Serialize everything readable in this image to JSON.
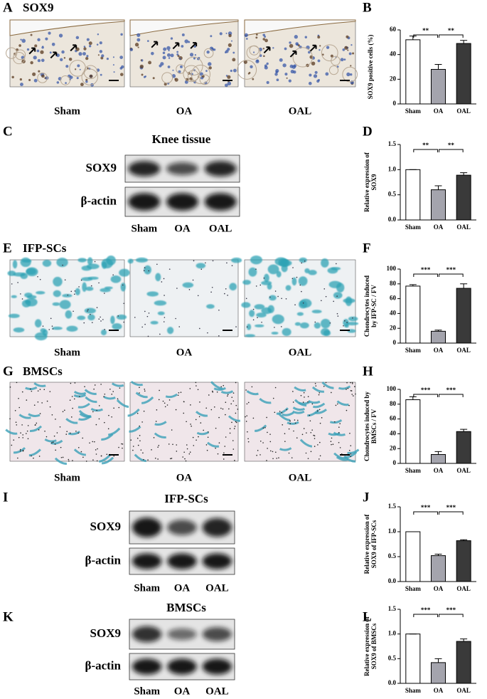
{
  "figure": {
    "A": {
      "label": "A",
      "title": "SOX9",
      "groups": [
        "Sham",
        "OA",
        "OAL"
      ]
    },
    "C": {
      "label": "C",
      "title": "Knee tissue",
      "rows": [
        "SOX9",
        "β-actin"
      ],
      "groups": [
        "Sham",
        "OA",
        "OAL"
      ]
    },
    "E": {
      "label": "E",
      "title": "IFP-SCs",
      "groups": [
        "Sham",
        "OA",
        "OAL"
      ]
    },
    "G": {
      "label": "G",
      "title": "BMSCs",
      "groups": [
        "Sham",
        "OA",
        "OAL"
      ]
    },
    "I": {
      "label": "I",
      "title": "IFP-SCs",
      "rows": [
        "SOX9",
        "β-actin"
      ],
      "groups": [
        "Sham",
        "OA",
        "OAL"
      ]
    },
    "K": {
      "label": "K",
      "title": "BMSCs",
      "rows": [
        "SOX9",
        "β-actin"
      ],
      "groups": [
        "Sham",
        "OA",
        "OAL"
      ]
    }
  },
  "chart_data": [
    {
      "type": "bar",
      "panel_label": "B",
      "ylabel": [
        "SOX9 positive cells (%)"
      ],
      "categories": [
        "Sham",
        "OA",
        "OAL"
      ],
      "values": [
        52,
        28,
        49
      ],
      "errors": [
        3,
        4,
        2.5
      ],
      "colors": [
        "#ffffff",
        "#a4a4ad",
        "#3a3a3a"
      ],
      "ylim": [
        0,
        60
      ],
      "yticks": [
        0,
        20,
        40,
        60
      ],
      "annotations": [
        "**",
        "**"
      ]
    },
    {
      "type": "bar",
      "panel_label": "D",
      "ylabel": [
        "Relative expression of",
        "SOX9"
      ],
      "categories": [
        "Sham",
        "OA",
        "OAL"
      ],
      "values": [
        1.0,
        0.6,
        0.89
      ],
      "errors": [
        0,
        0.08,
        0.05
      ],
      "colors": [
        "#ffffff",
        "#a4a4ad",
        "#3a3a3a"
      ],
      "ylim": [
        0,
        1.5
      ],
      "yticks": [
        {
          "value": 0,
          "label": "0.0"
        },
        0.5,
        {
          "value": 1,
          "label": "1.0"
        },
        1.5
      ],
      "annotations": [
        "**",
        "**"
      ]
    },
    {
      "type": "bar",
      "panel_label": "F",
      "ylabel": [
        "Chondrocytes induced",
        "by IFP-SC / FV"
      ],
      "categories": [
        "Sham",
        "OA",
        "OAL"
      ],
      "values": [
        77,
        16,
        74
      ],
      "errors": [
        2,
        1.5,
        6
      ],
      "colors": [
        "#ffffff",
        "#a4a4ad",
        "#3a3a3a"
      ],
      "ylim": [
        0,
        100
      ],
      "yticks": [
        0,
        20,
        40,
        60,
        80,
        100
      ],
      "annotations": [
        "***",
        "***"
      ]
    },
    {
      "type": "bar",
      "panel_label": "H",
      "ylabel": [
        "Chondrocytes induced by",
        "BMSCs / FV"
      ],
      "categories": [
        "Sham",
        "OA",
        "OAL"
      ],
      "values": [
        86,
        12,
        43
      ],
      "errors": [
        4,
        4,
        3
      ],
      "colors": [
        "#ffffff",
        "#a4a4ad",
        "#3a3a3a"
      ],
      "ylim": [
        0,
        100
      ],
      "yticks": [
        0,
        20,
        40,
        60,
        80,
        100
      ],
      "annotations": [
        "***",
        "***"
      ]
    },
    {
      "type": "bar",
      "panel_label": "J",
      "ylabel": [
        "Relative expression of",
        "SOX9 of IFP-SCs"
      ],
      "categories": [
        "Sham",
        "OA",
        "OAL"
      ],
      "values": [
        1.0,
        0.52,
        0.82
      ],
      "errors": [
        0,
        0.03,
        0.02
      ],
      "colors": [
        "#ffffff",
        "#a4a4ad",
        "#3a3a3a"
      ],
      "ylim": [
        0,
        1.5
      ],
      "yticks": [
        {
          "value": 0,
          "label": "0.0"
        },
        0.5,
        {
          "value": 1,
          "label": "1.0"
        },
        1.5
      ],
      "annotations": [
        "***",
        "***"
      ]
    },
    {
      "type": "bar",
      "panel_label": "L",
      "ylabel": [
        "Relative expression of",
        "SOX9 of BMSCs"
      ],
      "categories": [
        "Sham",
        "OA",
        "OAL"
      ],
      "values": [
        1.0,
        0.42,
        0.85
      ],
      "errors": [
        0,
        0.08,
        0.05
      ],
      "colors": [
        "#ffffff",
        "#a4a4ad",
        "#3a3a3a"
      ],
      "ylim": [
        0,
        1.5
      ],
      "yticks": [
        {
          "value": 0,
          "label": "0.0"
        },
        0.5,
        {
          "value": 1,
          "label": "1.0"
        },
        1.5
      ],
      "annotations": [
        "***",
        "***"
      ]
    }
  ]
}
